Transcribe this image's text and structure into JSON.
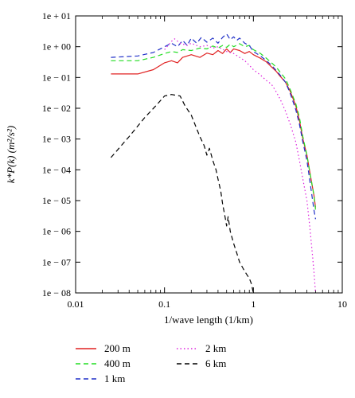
{
  "chart_data": {
    "type": "line",
    "title": "",
    "xlabel": "1/wave length (1/km)",
    "ylabel": "k*P(k) (m²/s²)",
    "xscale": "log",
    "yscale": "log",
    "xlim": [
      0.01,
      10
    ],
    "ylim": [
      1e-08,
      10
    ],
    "grid": false,
    "legend_position": "bottom",
    "x_ticks": [
      {
        "value": 0.01,
        "label": "0.01"
      },
      {
        "value": 0.1,
        "label": "0.1"
      },
      {
        "value": 1,
        "label": "1"
      },
      {
        "value": 10,
        "label": "10"
      }
    ],
    "y_ticks": [
      {
        "value": 10,
        "label": "1e + 01"
      },
      {
        "value": 1,
        "label": "1e + 00"
      },
      {
        "value": 0.1,
        "label": "1e − 01"
      },
      {
        "value": 0.01,
        "label": "1e − 02"
      },
      {
        "value": 0.001,
        "label": "1e − 03"
      },
      {
        "value": 0.0001,
        "label": "1e − 04"
      },
      {
        "value": 1e-05,
        "label": "1e − 05"
      },
      {
        "value": 1e-06,
        "label": "1e − 06"
      },
      {
        "value": 1e-07,
        "label": "1e − 07"
      },
      {
        "value": 1e-08,
        "label": "1e − 08"
      }
    ],
    "series": [
      {
        "name": "200 m",
        "color": "#e02020",
        "dash": "solid",
        "points": [
          [
            0.025,
            0.13
          ],
          [
            0.05,
            0.13
          ],
          [
            0.075,
            0.18
          ],
          [
            0.1,
            0.3
          ],
          [
            0.12,
            0.35
          ],
          [
            0.14,
            0.3
          ],
          [
            0.16,
            0.45
          ],
          [
            0.2,
            0.55
          ],
          [
            0.25,
            0.45
          ],
          [
            0.3,
            0.62
          ],
          [
            0.35,
            0.55
          ],
          [
            0.4,
            0.75
          ],
          [
            0.45,
            0.6
          ],
          [
            0.5,
            0.85
          ],
          [
            0.55,
            0.65
          ],
          [
            0.6,
            0.85
          ],
          [
            0.7,
            0.75
          ],
          [
            0.8,
            0.6
          ],
          [
            0.9,
            0.7
          ],
          [
            1.0,
            0.55
          ],
          [
            1.2,
            0.42
          ],
          [
            1.4,
            0.32
          ],
          [
            1.6,
            0.22
          ],
          [
            1.8,
            0.16
          ],
          [
            2.0,
            0.11
          ],
          [
            2.3,
            0.07
          ],
          [
            2.6,
            0.035
          ],
          [
            3.0,
            0.012
          ],
          [
            3.3,
            0.004
          ],
          [
            3.6,
            0.001
          ],
          [
            4.0,
            0.0003
          ],
          [
            4.4,
            6e-05
          ],
          [
            4.8,
            1.5e-05
          ],
          [
            5.0,
            6e-06
          ]
        ]
      },
      {
        "name": "400 m",
        "color": "#22dd22",
        "dash": "6,4",
        "points": [
          [
            0.025,
            0.35
          ],
          [
            0.05,
            0.35
          ],
          [
            0.075,
            0.45
          ],
          [
            0.1,
            0.6
          ],
          [
            0.12,
            0.7
          ],
          [
            0.14,
            0.65
          ],
          [
            0.16,
            0.8
          ],
          [
            0.2,
            0.75
          ],
          [
            0.25,
            0.9
          ],
          [
            0.3,
            0.85
          ],
          [
            0.35,
            1.05
          ],
          [
            0.4,
            0.9
          ],
          [
            0.45,
            1.1
          ],
          [
            0.5,
            0.95
          ],
          [
            0.55,
            1.2
          ],
          [
            0.6,
            1.0
          ],
          [
            0.7,
            1.25
          ],
          [
            0.8,
            1.0
          ],
          [
            0.9,
            1.1
          ],
          [
            1.0,
            0.8
          ],
          [
            1.2,
            0.6
          ],
          [
            1.4,
            0.42
          ],
          [
            1.6,
            0.3
          ],
          [
            1.8,
            0.22
          ],
          [
            2.0,
            0.15
          ],
          [
            2.3,
            0.09
          ],
          [
            2.6,
            0.04
          ],
          [
            3.0,
            0.014
          ],
          [
            3.3,
            0.005
          ],
          [
            3.6,
            0.0012
          ],
          [
            4.0,
            0.0003
          ],
          [
            4.4,
            6e-05
          ],
          [
            4.8,
            1.5e-05
          ],
          [
            5.0,
            5e-06
          ]
        ]
      },
      {
        "name": "1 km",
        "color": "#2030c8",
        "dash": "6,4",
        "points": [
          [
            0.025,
            0.45
          ],
          [
            0.05,
            0.5
          ],
          [
            0.075,
            0.65
          ],
          [
            0.1,
            1.0
          ],
          [
            0.12,
            1.3
          ],
          [
            0.14,
            1.0
          ],
          [
            0.16,
            1.6
          ],
          [
            0.18,
            1.1
          ],
          [
            0.2,
            1.9
          ],
          [
            0.23,
            1.3
          ],
          [
            0.26,
            2.0
          ],
          [
            0.3,
            1.4
          ],
          [
            0.35,
            1.9
          ],
          [
            0.4,
            1.3
          ],
          [
            0.45,
            2.0
          ],
          [
            0.5,
            2.6
          ],
          [
            0.55,
            1.7
          ],
          [
            0.6,
            2.1
          ],
          [
            0.65,
            1.6
          ],
          [
            0.7,
            1.9
          ],
          [
            0.8,
            1.3
          ],
          [
            0.9,
            1.1
          ],
          [
            1.0,
            0.7
          ],
          [
            1.2,
            0.5
          ],
          [
            1.4,
            0.35
          ],
          [
            1.6,
            0.25
          ],
          [
            1.8,
            0.17
          ],
          [
            2.0,
            0.12
          ],
          [
            2.3,
            0.07
          ],
          [
            2.6,
            0.03
          ],
          [
            3.0,
            0.009
          ],
          [
            3.3,
            0.003
          ],
          [
            3.6,
            0.0008
          ],
          [
            4.0,
            0.0002
          ],
          [
            4.4,
            3e-05
          ],
          [
            4.8,
            5e-06
          ],
          [
            5.0,
            2.5e-06
          ]
        ]
      },
      {
        "name": "2 km",
        "color": "#dd22dd",
        "dash": "1.5,3",
        "points": [
          [
            0.1,
            0.8
          ],
          [
            0.12,
            1.5
          ],
          [
            0.13,
            1.8
          ],
          [
            0.15,
            1.3
          ],
          [
            0.18,
            1.1
          ],
          [
            0.2,
            1.3
          ],
          [
            0.25,
            1.0
          ],
          [
            0.3,
            1.1
          ],
          [
            0.35,
            0.9
          ],
          [
            0.4,
            1.0
          ],
          [
            0.5,
            0.7
          ],
          [
            0.6,
            0.6
          ],
          [
            0.7,
            0.45
          ],
          [
            0.8,
            0.35
          ],
          [
            0.9,
            0.25
          ],
          [
            1.0,
            0.18
          ],
          [
            1.2,
            0.12
          ],
          [
            1.4,
            0.08
          ],
          [
            1.6,
            0.06
          ],
          [
            1.8,
            0.035
          ],
          [
            2.0,
            0.02
          ],
          [
            2.3,
            0.008
          ],
          [
            2.6,
            0.003
          ],
          [
            3.0,
            0.0008
          ],
          [
            3.3,
            0.0002
          ],
          [
            3.6,
            5e-05
          ],
          [
            4.0,
            1e-05
          ],
          [
            4.3,
            1.5e-06
          ],
          [
            4.6,
            2e-07
          ],
          [
            4.8,
            5e-08
          ],
          [
            5.0,
            1e-08
          ]
        ]
      },
      {
        "name": "6 km",
        "color": "#000000",
        "dash": "6,4",
        "points": [
          [
            0.025,
            0.00025
          ],
          [
            0.04,
            0.0012
          ],
          [
            0.06,
            0.005
          ],
          [
            0.08,
            0.012
          ],
          [
            0.1,
            0.025
          ],
          [
            0.12,
            0.028
          ],
          [
            0.15,
            0.025
          ],
          [
            0.17,
            0.012
          ],
          [
            0.2,
            0.006
          ],
          [
            0.22,
            0.003
          ],
          [
            0.25,
            0.0012
          ],
          [
            0.28,
            0.0006
          ],
          [
            0.3,
            0.0003
          ],
          [
            0.32,
            0.0005
          ],
          [
            0.35,
            0.0002
          ],
          [
            0.38,
            0.0001
          ],
          [
            0.4,
            5e-05
          ],
          [
            0.43,
            2e-05
          ],
          [
            0.45,
            8e-06
          ],
          [
            0.48,
            3e-06
          ],
          [
            0.5,
            1.5e-06
          ],
          [
            0.52,
            3e-06
          ],
          [
            0.55,
            1e-06
          ],
          [
            0.6,
            4e-07
          ],
          [
            0.65,
            2e-07
          ],
          [
            0.7,
            1e-07
          ],
          [
            0.8,
            5e-08
          ],
          [
            0.9,
            3e-08
          ],
          [
            0.95,
            2e-08
          ],
          [
            1.0,
            1e-08
          ]
        ]
      }
    ]
  }
}
